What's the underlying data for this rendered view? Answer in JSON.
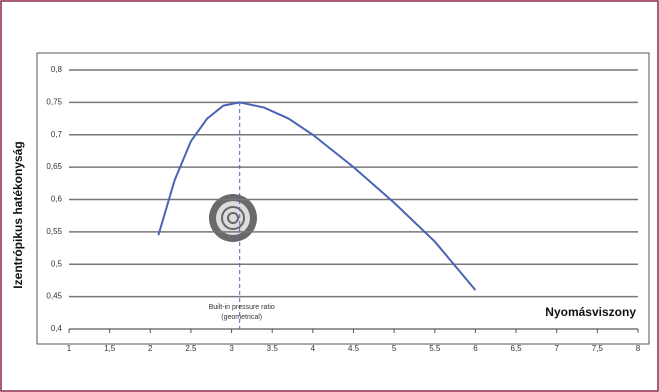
{
  "chart_data": {
    "type": "line",
    "x_label": "Nyomásviszony",
    "y_label": "Izentrópikus hatékonyság",
    "series": [
      {
        "color": "#4a64b4",
        "x": [
          2.1,
          2.3,
          2.5,
          2.7,
          2.9,
          3.1,
          3.4,
          3.7,
          4,
          4.5,
          5,
          5.5,
          6
        ],
        "values": [
          0.545,
          0.63,
          0.69,
          0.725,
          0.745,
          0.75,
          0.742,
          0.725,
          0.7,
          0.65,
          0.595,
          0.535,
          0.46
        ]
      }
    ],
    "annotations": [
      {
        "text": [
          "Built-in pressure ratio",
          "(geometrical)"
        ],
        "x": 3.1
      }
    ],
    "xlim": [
      1,
      8
    ],
    "xticks": [
      1,
      {
        "value": 1.5,
        "label": "1,5"
      },
      2,
      2.5,
      3,
      3.5,
      4,
      4.5,
      5,
      5.5,
      6,
      {
        "value": 6.5,
        "label": "6,5"
      },
      7,
      {
        "value": 7.5,
        "label": "7,5"
      },
      8
    ],
    "ylim": [
      0.4,
      0.8
    ],
    "yticks": [
      {
        "value": 0.4,
        "label": "0,4"
      },
      {
        "value": 0.45,
        "label": "0,45"
      },
      {
        "value": 0.5,
        "label": "0,5"
      },
      {
        "value": 0.55,
        "label": "0,55"
      },
      {
        "value": 0.6,
        "label": "0,6"
      },
      {
        "value": 0.65,
        "label": "0,65"
      },
      {
        "value": 0.7,
        "label": "0,7"
      },
      {
        "value": 0.75,
        "label": "0,75"
      },
      {
        "value": 0.8,
        "label": "0,8"
      }
    ],
    "grid": true
  }
}
